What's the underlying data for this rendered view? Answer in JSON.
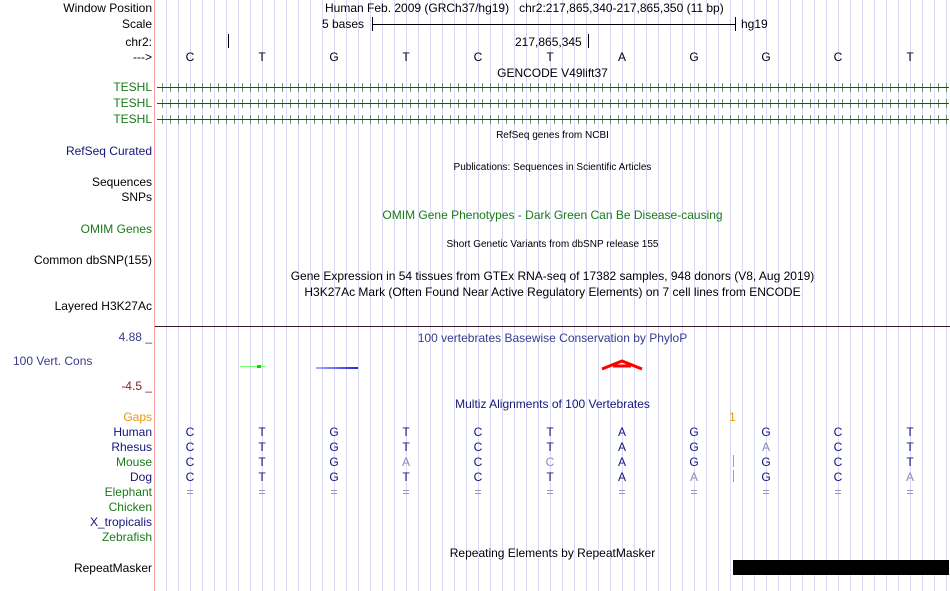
{
  "header": {
    "window_position_label": "Window Position",
    "assembly": "Human Feb. 2009 (GRCh37/hg19)",
    "position": "chr2:217,865,340-217,865,350 (11 bp)",
    "scale_label": "Scale",
    "scale_text": "5 bases",
    "scale_db": "hg19",
    "chrom_label": "chr2:",
    "coord": "217,865,345",
    "strand_label": "--->"
  },
  "reference_bases": [
    "C",
    "T",
    "G",
    "T",
    "C",
    "T",
    "A",
    "G",
    "G",
    "C",
    "T"
  ],
  "tracks": {
    "gencode_title": "GENCODE V49lift37",
    "teshl": [
      "TESHL",
      "TESHL",
      "TESHL"
    ],
    "refseq_title": "RefSeq genes from NCBI",
    "refseq_label": "RefSeq Curated",
    "pubs_title": "Publications: Sequences in Scientific Articles",
    "sequences_label": "Sequences",
    "snps_label": "SNPs",
    "omim_title": "OMIM Gene Phenotypes - Dark Green Can Be Disease-causing",
    "omim_label": "OMIM Genes",
    "dbsnp_title": "Short Genetic Variants from dbSNP release 155",
    "dbsnp_label": "Common dbSNP(155)",
    "gtex_title": "Gene Expression in 54 tissues from GTEx RNA-seq of 17382 samples, 948 donors (V8, Aug 2019)",
    "h3k27_title": "H3K27Ac Mark (Often Found Near Active Regulatory Elements) on 7 cell lines from ENCODE",
    "h3k27_label": "Layered H3K27Ac",
    "phylop_title": "100 vertebrates Basewise Conservation by PhyloP",
    "phylop_max": "4.88 _",
    "phylop_label": "100 Vert. Cons",
    "phylop_min": "-4.5 _",
    "multiz_title": "Multiz Alignments of 100 Vertebrates",
    "gaps_label": "Gaps",
    "gaps_mark": "1",
    "repeat_title": "Repeating Elements by RepeatMasker",
    "repeat_label": "RepeatMasker"
  },
  "alignment": [
    {
      "species": "Human",
      "color": "navy",
      "bases": [
        "C",
        "T",
        "G",
        "T",
        "C",
        "T",
        "A",
        "G",
        "G",
        "C",
        "T"
      ],
      "faint": []
    },
    {
      "species": "Rhesus",
      "color": "navy",
      "bases": [
        "C",
        "T",
        "G",
        "T",
        "C",
        "T",
        "A",
        "G",
        "A",
        "C",
        "T"
      ],
      "faint": [
        8
      ]
    },
    {
      "species": "Mouse",
      "color": "green",
      "bases": [
        "C",
        "T",
        "G",
        "A",
        "C",
        "C",
        "A",
        "G",
        "G",
        "C",
        "T"
      ],
      "faint": [
        3,
        5
      ]
    },
    {
      "species": "Dog",
      "color": "navy",
      "bases": [
        "C",
        "T",
        "G",
        "T",
        "C",
        "T",
        "A",
        "A",
        "G",
        "C",
        "A"
      ],
      "faint": [
        7,
        10
      ]
    },
    {
      "species": "Elephant",
      "color": "green",
      "bases": [
        "=",
        "=",
        "=",
        "=",
        "=",
        "=",
        "=",
        "=",
        "=",
        "=",
        "="
      ],
      "faint": [
        0,
        1,
        2,
        3,
        4,
        5,
        6,
        7,
        8,
        9,
        10
      ]
    },
    {
      "species": "Chicken",
      "color": "green",
      "bases": [],
      "faint": []
    },
    {
      "species": "X_tropicalis",
      "color": "navy",
      "bases": [],
      "faint": []
    },
    {
      "species": "Zebrafish",
      "color": "green",
      "bases": [],
      "faint": []
    }
  ],
  "colors": {
    "navy": "#15157a",
    "green": "#1a7a1a",
    "faint": "#8a8ab8",
    "gaps": "#e8960c",
    "phylop_pos": "#3a3a8c",
    "phylop_neg": "#8b2020"
  }
}
